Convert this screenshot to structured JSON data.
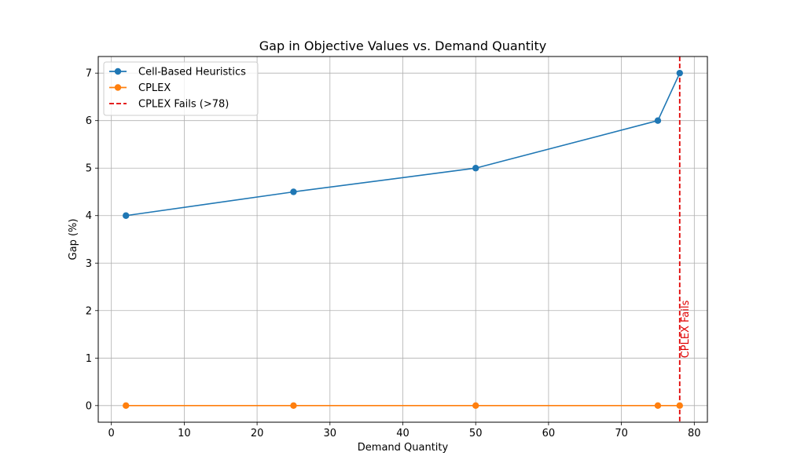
{
  "chart_data": {
    "type": "line",
    "title": "Gap in Objective Values vs. Demand Quantity",
    "xlabel": "Demand Quantity",
    "ylabel": "Gap (%)",
    "xlim": [
      -1.8,
      81.8
    ],
    "ylim": [
      -0.35,
      7.35
    ],
    "x_ticks": [
      0,
      10,
      20,
      30,
      40,
      50,
      60,
      70,
      80
    ],
    "y_ticks": [
      0,
      1,
      2,
      3,
      4,
      5,
      6,
      7
    ],
    "grid": true,
    "legend_position": "top-left",
    "series": [
      {
        "name": "Cell-Based Heuristics",
        "color": "#1f77b4",
        "marker": "circle",
        "x": [
          2,
          25,
          50,
          75,
          78
        ],
        "y": [
          4,
          4.5,
          5,
          6,
          7
        ]
      },
      {
        "name": "CPLEX",
        "color": "#ff7f0e",
        "marker": "circle",
        "x": [
          2,
          25,
          50,
          75,
          78
        ],
        "y": [
          0,
          0,
          0,
          0,
          0
        ]
      }
    ],
    "reference_lines": [
      {
        "orientation": "vertical",
        "x": 78,
        "style": "dashed",
        "color": "#e00000",
        "legend_label": "CPLEX Fails (>78)",
        "annotation": "CPLEX Fails",
        "annotation_y": 1
      }
    ]
  }
}
